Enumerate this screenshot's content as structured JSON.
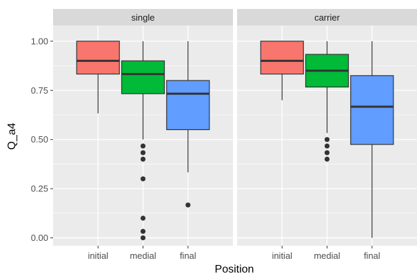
{
  "chart_data": {
    "type": "boxplot",
    "xlabel": "Position",
    "ylabel": "Q_a4",
    "ylim": [
      -0.04,
      1.08
    ],
    "y_ticks": [
      0.0,
      0.25,
      0.5,
      0.75,
      1.0
    ],
    "y_tick_labels": [
      "0.00",
      "0.25",
      "0.50",
      "0.75",
      "1.00"
    ],
    "categories": [
      "initial",
      "medial",
      "final"
    ],
    "category_colors": [
      "#F8766D",
      "#00BA38",
      "#619CFF"
    ],
    "grid": true,
    "legend": "none",
    "panels": [
      {
        "title": "single",
        "boxes": [
          {
            "category": "initial",
            "lower_whisker": 0.633,
            "q1": 0.833,
            "median": 0.9,
            "q3": 1.0,
            "upper_whisker": 1.0,
            "outliers": []
          },
          {
            "category": "medial",
            "lower_whisker": 0.5,
            "q1": 0.733,
            "median": 0.833,
            "q3": 0.9,
            "upper_whisker": 1.0,
            "outliers": [
              0.467,
              0.433,
              0.4,
              0.3,
              0.1,
              0.033,
              0.0
            ]
          },
          {
            "category": "final",
            "lower_whisker": 0.333,
            "q1": 0.55,
            "median": 0.733,
            "q3": 0.8,
            "upper_whisker": 1.0,
            "outliers": [
              0.167
            ]
          }
        ]
      },
      {
        "title": "carrier",
        "boxes": [
          {
            "category": "initial",
            "lower_whisker": 0.7,
            "q1": 0.833,
            "median": 0.9,
            "q3": 1.0,
            "upper_whisker": 1.0,
            "outliers": []
          },
          {
            "category": "medial",
            "lower_whisker": 0.533,
            "q1": 0.767,
            "median": 0.85,
            "q3": 0.933,
            "upper_whisker": 1.0,
            "outliers": [
              0.5,
              0.467,
              0.433,
              0.4
            ]
          },
          {
            "category": "final",
            "lower_whisker": 0.0,
            "q1": 0.475,
            "median": 0.667,
            "q3": 0.825,
            "upper_whisker": 1.0,
            "outliers": []
          }
        ]
      }
    ]
  }
}
